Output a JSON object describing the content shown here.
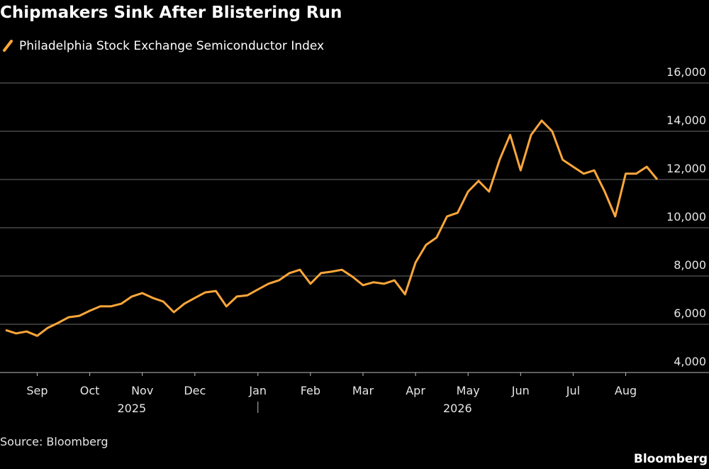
{
  "chart_data": {
    "type": "line",
    "title": "Chipmakers Sink After Blistering Run",
    "source": "Source: Bloomberg",
    "credit": "Bloomberg",
    "categories": [
      null,
      null,
      null,
      "Sep",
      null,
      null,
      null,
      null,
      "Oct",
      null,
      null,
      null,
      null,
      "Nov",
      null,
      null,
      null,
      null,
      "Dec",
      null,
      null,
      null,
      null,
      null,
      "Jan",
      null,
      null,
      null,
      null,
      "Feb",
      null,
      null,
      null,
      null,
      "Mar",
      null,
      null,
      null,
      null,
      "Apr",
      null,
      null,
      null,
      null,
      "May",
      null,
      null,
      null,
      null,
      "Jun",
      null,
      null,
      null,
      null,
      "Jul",
      null,
      null,
      null,
      null,
      "Aug",
      null,
      null,
      null
    ],
    "year_labels": [
      "2025",
      "2026"
    ],
    "series": [
      {
        "name": "Philadelphia Stock Exchange Semiconductor Index",
        "color": "#fca63a",
        "values": [
          5760,
          5620,
          5700,
          5520,
          5850,
          6060,
          6290,
          6350,
          6560,
          6740,
          6740,
          6850,
          7150,
          7290,
          7090,
          6940,
          6500,
          6850,
          7090,
          7320,
          7380,
          6740,
          7150,
          7200,
          7440,
          7680,
          7820,
          8120,
          8260,
          7680,
          8120,
          8180,
          8260,
          7970,
          7620,
          7740,
          7680,
          7820,
          7240,
          8560,
          9290,
          9590,
          10470,
          10620,
          11500,
          11940,
          11500,
          12820,
          13850,
          12380,
          13850,
          14440,
          14000,
          12820,
          12530,
          12240,
          12380,
          11500,
          10470,
          12240,
          12240,
          12530,
          12000
        ]
      }
    ],
    "ylim": [
      4000,
      16000
    ],
    "yticks": [
      {
        "value": 4000,
        "label": "4,000"
      },
      {
        "value": 6000,
        "label": "6,000"
      },
      {
        "value": 8000,
        "label": "8,000"
      },
      {
        "value": 10000,
        "label": "10,000"
      },
      {
        "value": 12000,
        "label": "12,000"
      },
      {
        "value": 14000,
        "label": "14,000"
      },
      {
        "value": 16000,
        "label": "16,000"
      }
    ],
    "grid": true
  }
}
